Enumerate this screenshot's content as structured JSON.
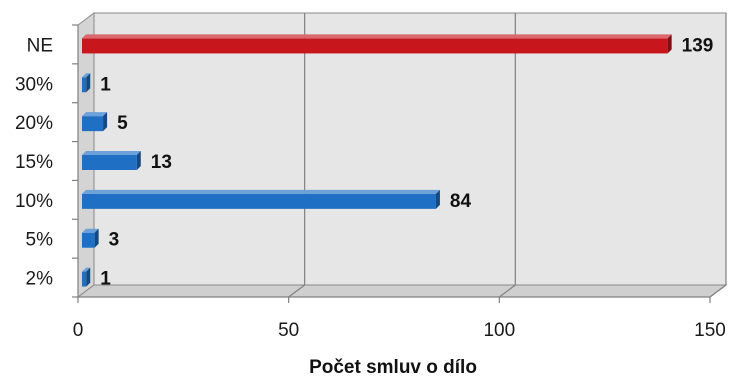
{
  "chart_data": {
    "type": "bar",
    "orientation": "horizontal",
    "three_d": true,
    "categories": [
      "2%",
      "5%",
      "10%",
      "15%",
      "20%",
      "30%",
      "NE"
    ],
    "values": [
      1,
      3,
      84,
      13,
      5,
      1,
      139
    ],
    "value_labels": [
      "1",
      "3",
      "84",
      "13",
      "5",
      "1",
      "139"
    ],
    "bar_colors": [
      "#1f6fc5",
      "#1f6fc5",
      "#1f6fc5",
      "#1f6fc5",
      "#1f6fc5",
      "#1f6fc5",
      "#c8161d"
    ],
    "xlabel": "Počet smluv o dílo",
    "ylabel": "",
    "xlim": [
      0,
      150
    ],
    "x_ticks": [
      0,
      50,
      100,
      150
    ],
    "x_tick_labels": [
      "0",
      "50",
      "100",
      "150"
    ],
    "grid": true,
    "legend": "none"
  },
  "colors": {
    "plot_background": "#e6e6e6",
    "gridline": "#808080",
    "blue_bar": "#1f6fc5",
    "red_bar": "#c8161d"
  }
}
